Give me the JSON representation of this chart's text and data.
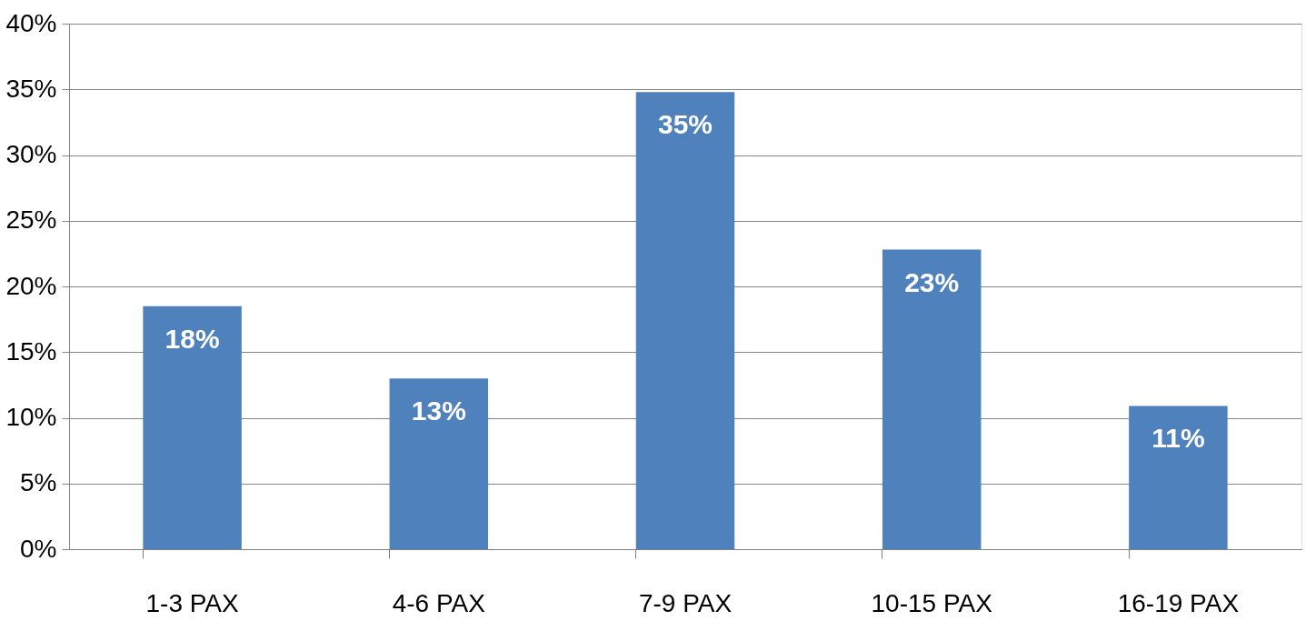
{
  "chart_data": {
    "type": "bar",
    "categories": [
      "1-3 PAX",
      "4-6 PAX",
      "7-9 PAX",
      "10-15 PAX",
      "16-19 PAX"
    ],
    "values": [
      18.5,
      13,
      34.8,
      22.8,
      10.9
    ],
    "value_labels": [
      "18%",
      "13%",
      "35%",
      "23%",
      "11%"
    ],
    "color": "#4f81bd",
    "ylim": [
      0,
      40
    ],
    "yticks": [
      {
        "value": 0,
        "label": "0%"
      },
      {
        "value": 5,
        "label": "5%"
      },
      {
        "value": 10,
        "label": "10%"
      },
      {
        "value": 15,
        "label": "15%"
      },
      {
        "value": 20,
        "label": "20%"
      },
      {
        "value": 25,
        "label": "25%"
      },
      {
        "value": 30,
        "label": "30%"
      },
      {
        "value": 35,
        "label": "35%"
      },
      {
        "value": 40,
        "label": "40%"
      }
    ],
    "grid": "y"
  }
}
